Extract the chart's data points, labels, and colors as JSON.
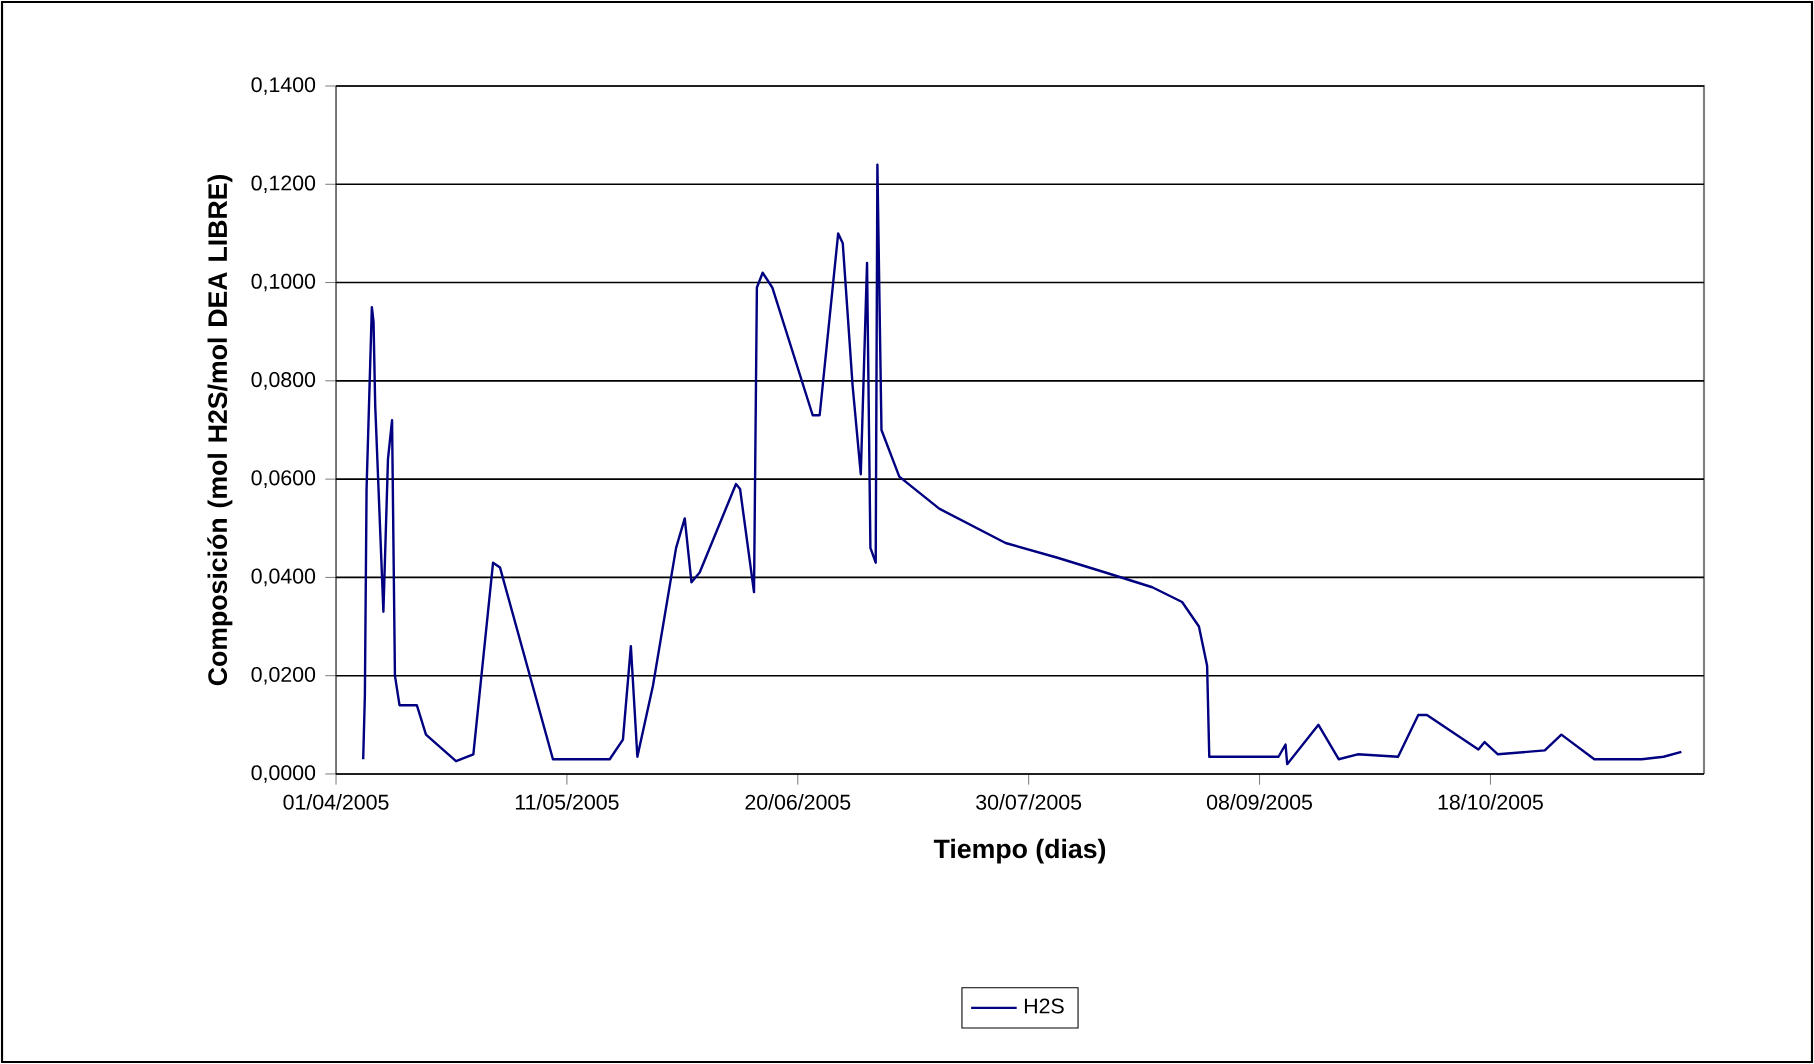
{
  "chart_data": {
    "type": "line",
    "ylabel": "Composición (mol H2S/mol DEA LIBRE)",
    "xlabel": "Tiempo (dias)",
    "xlim": [
      "2005-04-01",
      "2005-11-24"
    ],
    "xticks": [
      {
        "value": "2005-04-01",
        "label": "01/04/2005"
      },
      {
        "value": "2005-05-11",
        "label": "11/05/2005"
      },
      {
        "value": "2005-06-20",
        "label": "20/06/2005"
      },
      {
        "value": "2005-07-30",
        "label": "30/07/2005"
      },
      {
        "value": "2005-09-08",
        "label": "08/09/2005"
      },
      {
        "value": "2005-10-18",
        "label": "18/10/2005"
      }
    ],
    "ylim": [
      0,
      0.14
    ],
    "yticks": [
      {
        "value": 0,
        "label": "0,0000"
      },
      {
        "value": 0.02,
        "label": "0,0200"
      },
      {
        "value": 0.04,
        "label": "0,0400"
      },
      {
        "value": 0.06,
        "label": "0,0600"
      },
      {
        "value": 0.08,
        "label": "0,0800"
      },
      {
        "value": 0.1,
        "label": "0,1000"
      },
      {
        "value": 0.12,
        "label": "0,1200"
      },
      {
        "value": 0.14,
        "label": "0,1400"
      }
    ],
    "grid": "y",
    "legend": "bottom",
    "line_style": "solid",
    "series": [
      {
        "name": "H2S",
        "color": "#000080",
        "x": [
          "2005-04-05T17:00",
          "2005-04-06T00:00",
          "2005-04-06T07:00",
          "2005-04-07T05:00",
          "2005-04-07T12:00",
          "2005-04-07T19:00",
          "2005-04-09T05:00",
          "2005-04-10T00:00",
          "2005-04-10T17:00",
          "2005-04-11T05:00",
          "2005-04-12T00:00",
          "2005-04-15T00:00",
          "2005-04-16T14:00",
          "2005-04-21T19:00",
          "2005-04-24T19:00",
          "2005-04-28T05:00",
          "2005-04-29T10:00",
          "2005-05-08T14:00",
          "2005-05-18T10:00",
          "2005-05-20T17:00",
          "2005-05-22T02:00",
          "2005-05-23T05:00",
          "2005-05-25T22:00",
          "2005-05-29T22:00",
          "2005-05-31T10:00",
          "2005-06-01T14:00",
          "2005-06-03T00:00",
          "2005-06-09T07:00",
          "2005-06-10T00:00",
          "2005-06-12T10:00",
          "2005-06-12T22:00",
          "2005-06-13T22:00",
          "2005-06-15T14:00",
          "2005-06-22T14:00",
          "2005-06-23T19:00",
          "2005-06-27T00:00",
          "2005-06-27T19:00",
          "2005-06-29T12:00",
          "2005-06-30T22:00",
          "2005-07-02T00:00",
          "2005-07-02T14:00",
          "2005-07-03T12:00",
          "2005-07-03T19:00",
          "2005-07-04T12:00",
          "2005-07-07T14:00",
          "2005-07-14T12:00",
          "2005-07-26T00:00",
          "2005-08-04T00:00",
          "2005-08-12T07:00",
          "2005-08-20T10:00",
          "2005-08-25T14:00",
          "2005-08-28T12:00",
          "2005-08-29T22:00",
          "2005-08-30T07:00",
          "2005-09-11T07:00",
          "2005-09-12T12:00",
          "2005-09-12T19:00",
          "2005-09-18T05:00",
          "2005-09-21T17:00",
          "2005-09-25T00:00",
          "2005-10-02T00:00",
          "2005-10-05T12:00",
          "2005-10-07T00:00",
          "2005-10-15T22:00",
          "2005-10-17T00:00",
          "2005-10-19T07:00",
          "2005-10-27T10:00",
          "2005-10-30T07:00",
          "2005-11-05T00:00",
          "2005-11-13T05:00",
          "2005-11-17T00:00",
          "2005-11-20T02:00"
        ],
        "values": [
          0.003,
          0.016,
          0.058,
          0.095,
          0.092,
          0.075,
          0.033,
          0.064,
          0.072,
          0.02,
          0.014,
          0.014,
          0.008,
          0.0026,
          0.004,
          0.043,
          0.042,
          0.003,
          0.003,
          0.007,
          0.026,
          0.0035,
          0.018,
          0.046,
          0.052,
          0.039,
          0.041,
          0.059,
          0.058,
          0.037,
          0.099,
          0.102,
          0.099,
          0.073,
          0.073,
          0.11,
          0.108,
          0.079,
          0.061,
          0.104,
          0.046,
          0.043,
          0.124,
          0.07,
          0.0605,
          0.054,
          0.047,
          0.044,
          0.041,
          0.038,
          0.035,
          0.03,
          0.022,
          0.0035,
          0.0035,
          0.006,
          0.002,
          0.01,
          0.003,
          0.004,
          0.0035,
          0.012,
          0.012,
          0.005,
          0.0065,
          0.004,
          0.0048,
          0.008,
          0.003,
          0.003,
          0.0035,
          0.0045
        ]
      }
    ]
  }
}
